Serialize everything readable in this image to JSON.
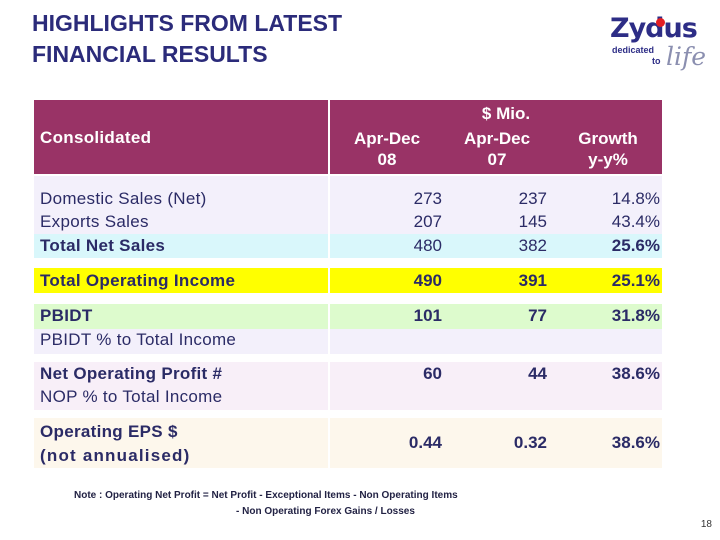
{
  "title": {
    "line1": "HIGHLIGHTS FROM LATEST",
    "line2": "FINANCIAL RESULTS"
  },
  "logo": {
    "brand": "Zydus",
    "tagline_1": "dedicated",
    "tagline_2": "to",
    "tagline_3": "life"
  },
  "table": {
    "header": {
      "label": "Consolidated",
      "currency": "$ Mio.",
      "col1_line1": "Apr-Dec",
      "col1_line2": "08",
      "col2_line1": "Apr-Dec",
      "col2_line2": "07",
      "col3_line1": "Growth",
      "col3_line2": "y-y%"
    },
    "rows": [
      {
        "label": "Domestic Sales (Net)",
        "v1": "273",
        "v2": "237",
        "v3": "14.8%"
      },
      {
        "label": "Exports Sales",
        "v1": "207",
        "v2": "145",
        "v3": "43.4%"
      },
      {
        "label": "Total Net Sales",
        "v1": "480",
        "v2": "382",
        "v3": "25.6%"
      },
      {
        "label": "Total Operating Income",
        "v1": "490",
        "v2": "391",
        "v3": "25.1%"
      },
      {
        "label": "PBIDT",
        "v1": "101",
        "v2": "77",
        "v3": "31.8%"
      },
      {
        "label": "PBIDT % to Total Income"
      },
      {
        "label": "Net Operating Profit #",
        "v1": "60",
        "v2": "44",
        "v3": "38.6%"
      },
      {
        "label": "NOP % to Total Income"
      },
      {
        "label_line1": "Operating EPS $",
        "label_line2": "(not annualised)",
        "v1": "0.44",
        "v2": "0.32",
        "v3": "38.6%"
      }
    ]
  },
  "note": {
    "line1": "Note : Operating Net Profit = Net Profit - Exceptional Items - Non Operating Items",
    "line2": "- Non Operating Forex Gains / Losses"
  },
  "page_number": "18"
}
